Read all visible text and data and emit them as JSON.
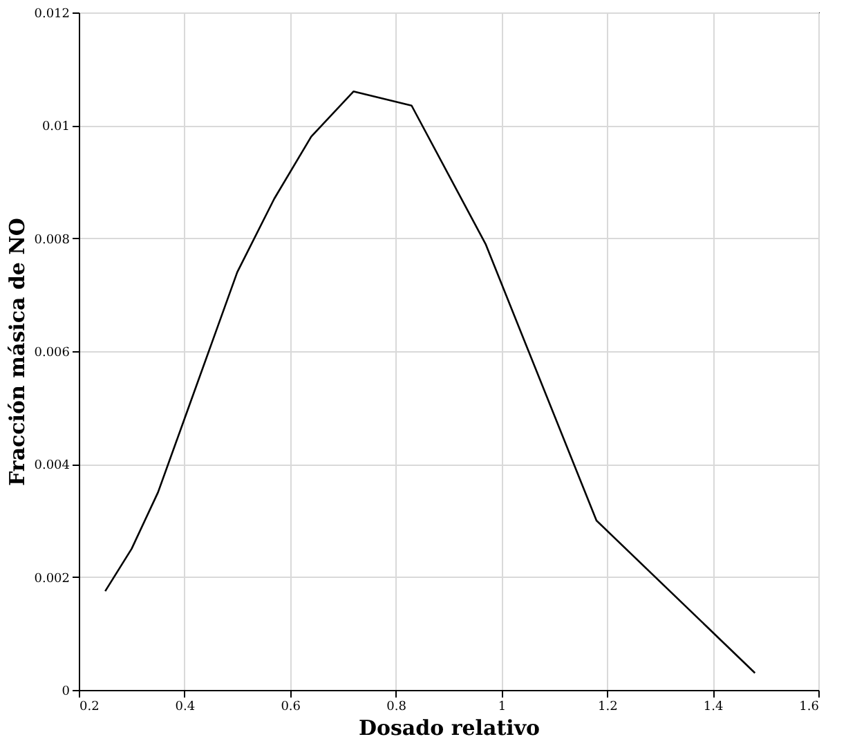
{
  "chart_data": {
    "type": "line",
    "xlabel": "Dosado relativo",
    "ylabel": "Fracción másica de NO",
    "x": [
      0.25,
      0.3,
      0.35,
      0.4,
      0.45,
      0.5,
      0.57,
      0.64,
      0.72,
      0.83,
      0.97,
      1.18,
      1.48
    ],
    "series": [
      {
        "color": "#000000",
        "values": [
          0.00175,
          0.0025,
          0.0035,
          0.0048,
          0.0061,
          0.0074,
          0.0087,
          0.0098,
          0.0106,
          0.01035,
          0.0079,
          0.003,
          0.0003
        ]
      }
    ],
    "xlim": [
      0.2,
      1.6
    ],
    "xticks": [
      0.2,
      0.4,
      0.6,
      0.8,
      1,
      1.2,
      1.4,
      1.6
    ],
    "ylim": [
      0,
      0.012
    ],
    "yticks": [
      0,
      0.002,
      0.004,
      0.006,
      0.008,
      0.01,
      0.012
    ],
    "grid": true,
    "marker": "none",
    "line_style": "solid"
  }
}
